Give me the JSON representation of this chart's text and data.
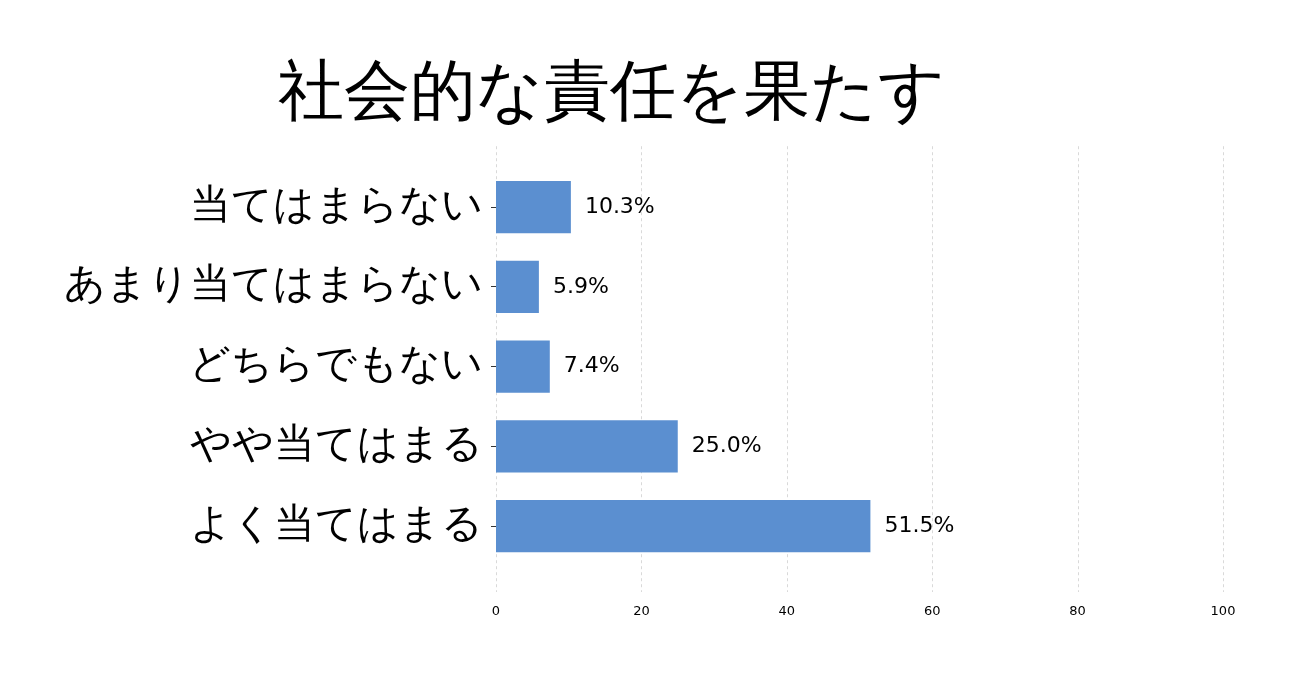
{
  "chart_data": {
    "type": "bar",
    "orientation": "horizontal",
    "title": "社会的な責任を果たす",
    "categories": [
      "当てはまらない",
      "あまり当てはまらない",
      "どちらでもない",
      "やや当てはまる",
      "よく当てはまる"
    ],
    "values": [
      10.3,
      5.9,
      7.4,
      25.0,
      51.5
    ],
    "color": "#5b8fd0",
    "value_labels": [
      "10.3%",
      "5.9%",
      "7.4%",
      "25.0%",
      "51.5%"
    ],
    "xlim": [
      0,
      100
    ],
    "xticks": [
      0,
      20,
      40,
      60,
      80,
      100
    ],
    "grid": "x"
  }
}
